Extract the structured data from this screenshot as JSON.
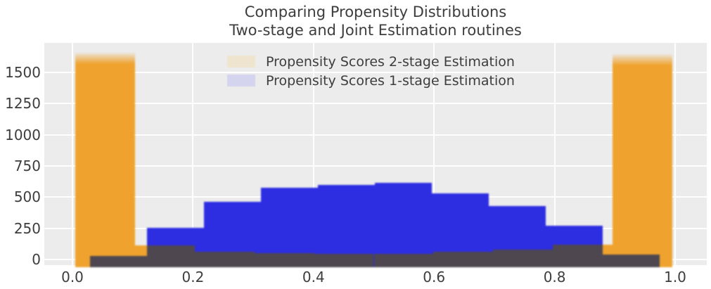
{
  "title": {
    "line1": "Comparing Propensity Distributions",
    "line2": "Two-stage and Joint Estimation routines"
  },
  "legend": {
    "position": "upper center",
    "items": [
      {
        "label": "Propensity Scores 2-stage Estimation",
        "swatch_color": "#efe5ce"
      },
      {
        "label": "Propensity Scores 1-stage Estimation",
        "swatch_color": "#d4d4ee"
      }
    ]
  },
  "chart_data": {
    "type": "bar",
    "subtype": "overlaid-histograms",
    "title": "Comparing Propensity Distributions\nTwo-stage and Joint Estimation routines",
    "xlabel": "",
    "ylabel": "",
    "xlim": [
      -0.047,
      1.05
    ],
    "ylim": [
      -43,
      1735
    ],
    "grid": true,
    "plot_background": "#ececec",
    "gridline_color": "#ffffff",
    "overlap_color": "#4e4750",
    "series": [
      {
        "name": "Propensity Scores 2-stage Estimation",
        "color": "#efa32e",
        "bin_start": 0.005,
        "bin_width": 0.099,
        "counts": [
          1590,
          110,
          60,
          52,
          43,
          47,
          60,
          80,
          120,
          1580
        ]
      },
      {
        "name": "Propensity Scores 1-stage Estimation",
        "color": "#2d2de2",
        "bin_start": 0.029,
        "bin_width": 0.0945,
        "counts": [
          30,
          255,
          460,
          575,
          600,
          615,
          530,
          430,
          270,
          40
        ]
      }
    ],
    "x_ticks": {
      "values": [
        0.0,
        0.2,
        0.4,
        0.6,
        0.8,
        1.0
      ],
      "labels": [
        "0.0",
        "0.2",
        "0.4",
        "0.6",
        "0.8",
        "1.0"
      ]
    },
    "y_ticks": {
      "values": [
        0,
        250,
        500,
        750,
        1000,
        1250,
        1500
      ],
      "labels": [
        "0",
        "250",
        "500",
        "750",
        "1000",
        "1250",
        "1500"
      ]
    }
  }
}
